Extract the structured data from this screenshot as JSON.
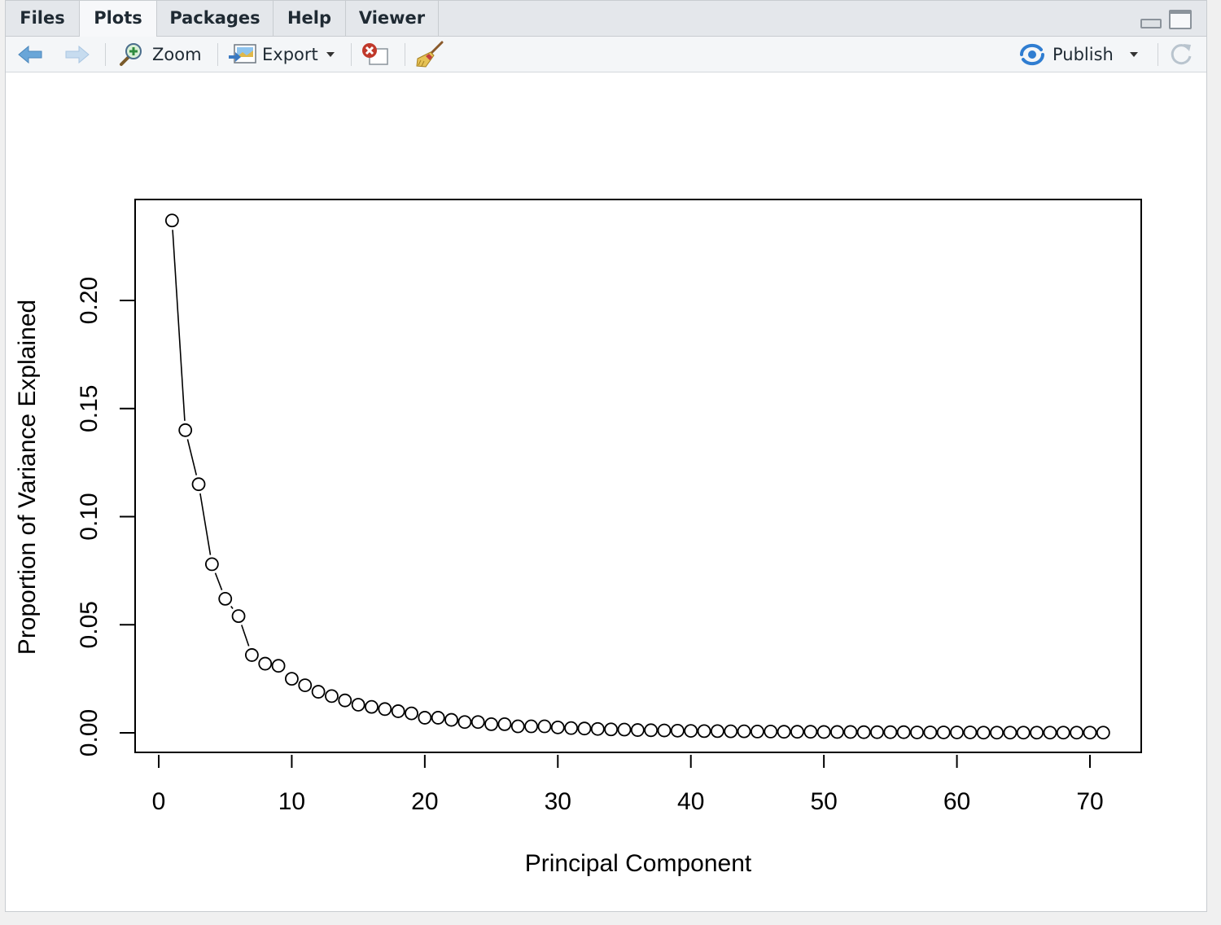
{
  "tabs": [
    {
      "label": "Files",
      "active": false
    },
    {
      "label": "Plots",
      "active": true
    },
    {
      "label": "Packages",
      "active": false
    },
    {
      "label": "Help",
      "active": false
    },
    {
      "label": "Viewer",
      "active": false
    }
  ],
  "toolbar": {
    "zoom_label": "Zoom",
    "export_label": "Export",
    "publish_label": "Publish",
    "icons": [
      "back-arrow-icon",
      "forward-arrow-icon",
      "zoom-icon",
      "export-icon",
      "remove-plot-icon",
      "broom-icon",
      "publish-icon",
      "refresh-icon"
    ]
  },
  "colors": {
    "tabbar_bg": "#e4e7eb",
    "toolbar_bg": "#f4f6f8",
    "nav_arrow": "#6aa6d8",
    "publish_blue": "#2f7dd1",
    "remove_red": "#c0392b"
  },
  "chart_data": {
    "type": "line",
    "markers": "open-circle",
    "title": "",
    "xlabel": "Principal Component",
    "ylabel": "Proportion of Variance Explained",
    "xlim": [
      0,
      71
    ],
    "ylim": [
      0,
      0.237
    ],
    "x_ticks": [
      0,
      10,
      20,
      30,
      40,
      50,
      60,
      70
    ],
    "y_ticks": [
      0.0,
      0.05,
      0.1,
      0.15,
      0.2
    ],
    "y_tick_labels": [
      "0.00",
      "0.05",
      "0.10",
      "0.15",
      "0.20"
    ],
    "grid": false,
    "x": [
      1,
      2,
      3,
      4,
      5,
      6,
      7,
      8,
      9,
      10,
      11,
      12,
      13,
      14,
      15,
      16,
      17,
      18,
      19,
      20,
      21,
      22,
      23,
      24,
      25,
      26,
      27,
      28,
      29,
      30,
      31,
      32,
      33,
      34,
      35,
      36,
      37,
      38,
      39,
      40,
      41,
      42,
      43,
      44,
      45,
      46,
      47,
      48,
      49,
      50,
      51,
      52,
      53,
      54,
      55,
      56,
      57,
      58,
      59,
      60,
      61,
      62,
      63,
      64,
      65,
      66,
      67,
      68,
      69,
      70,
      71
    ],
    "values": [
      0.237,
      0.14,
      0.115,
      0.078,
      0.062,
      0.054,
      0.036,
      0.032,
      0.031,
      0.025,
      0.022,
      0.019,
      0.017,
      0.015,
      0.013,
      0.012,
      0.011,
      0.01,
      0.009,
      0.007,
      0.007,
      0.006,
      0.005,
      0.005,
      0.004,
      0.004,
      0.003,
      0.003,
      0.003,
      0.0025,
      0.0022,
      0.002,
      0.0018,
      0.0016,
      0.0015,
      0.0013,
      0.0012,
      0.0011,
      0.001,
      0.0009,
      0.0008,
      0.0008,
      0.0007,
      0.0007,
      0.0006,
      0.0006,
      0.0005,
      0.0005,
      0.0005,
      0.0004,
      0.0004,
      0.0004,
      0.0003,
      0.0003,
      0.0003,
      0.0003,
      0.0002,
      0.0002,
      0.0002,
      0.0002,
      0.0002,
      0.0001,
      0.0001,
      0.0001,
      0.0001,
      0.0001,
      0.0001,
      0.0001,
      0.0001,
      0.0001,
      0.0001
    ]
  }
}
